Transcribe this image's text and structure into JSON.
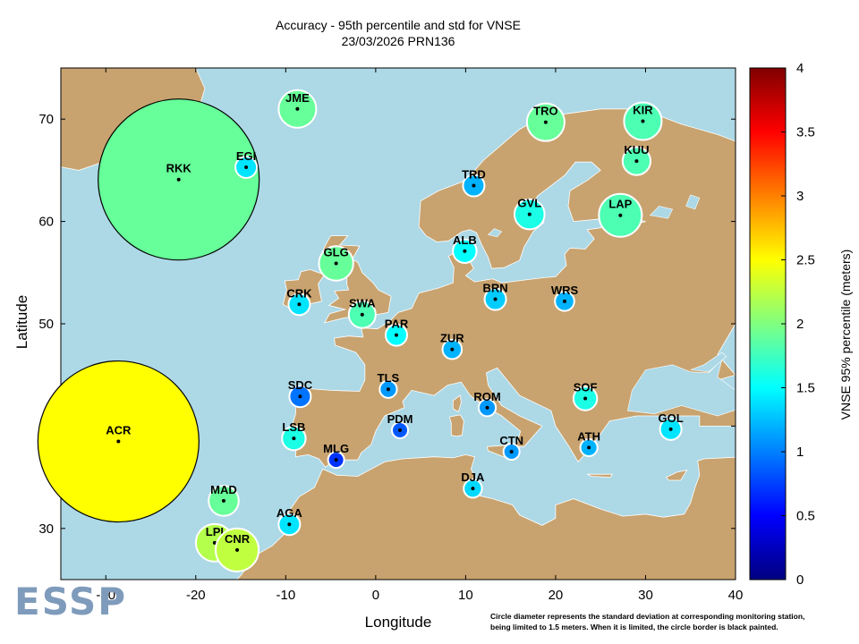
{
  "chart_data": {
    "type": "scatter",
    "title": "Accuracy - 95th percentile and std for VNSE",
    "subtitle": "23/03/2026 PRN136",
    "xlabel": "Longitude",
    "ylabel": "Latitude",
    "xlim": [
      -35,
      40
    ],
    "ylim": [
      25,
      75
    ],
    "xticks": [
      -30,
      -20,
      -10,
      0,
      10,
      20,
      30,
      40
    ],
    "yticks": [
      30,
      40,
      50,
      60,
      70
    ],
    "colorbar": {
      "label": "VNSE 95% percentile (meters)",
      "range": [
        0,
        4
      ],
      "ticks": [
        "0",
        "0.5",
        "1",
        "1.5",
        "2",
        "2.5",
        "3",
        "3.5",
        "4"
      ]
    },
    "stations": [
      {
        "name": "JME",
        "lon": -8.7,
        "lat": 71.0,
        "p95": 1.9,
        "std": 0.35,
        "limited": false
      },
      {
        "name": "RKK",
        "lon": -21.9,
        "lat": 64.1,
        "p95": 1.9,
        "std": 1.5,
        "limited": true
      },
      {
        "name": "EGI",
        "lon": -14.4,
        "lat": 65.3,
        "p95": 1.4,
        "std": 0.2,
        "limited": false
      },
      {
        "name": "TRO",
        "lon": 18.9,
        "lat": 69.7,
        "p95": 1.9,
        "std": 0.35,
        "limited": false
      },
      {
        "name": "KIR",
        "lon": 29.7,
        "lat": 69.8,
        "p95": 1.8,
        "std": 0.35,
        "limited": false
      },
      {
        "name": "KUU",
        "lon": 29.0,
        "lat": 65.9,
        "p95": 1.8,
        "std": 0.26,
        "limited": false
      },
      {
        "name": "TRD",
        "lon": 10.9,
        "lat": 63.5,
        "p95": 1.2,
        "std": 0.2,
        "limited": false
      },
      {
        "name": "GVL",
        "lon": 17.1,
        "lat": 60.7,
        "p95": 1.6,
        "std": 0.28,
        "limited": false
      },
      {
        "name": "LAP",
        "lon": 27.2,
        "lat": 60.6,
        "p95": 1.8,
        "std": 0.4,
        "limited": false
      },
      {
        "name": "ALB",
        "lon": 9.9,
        "lat": 57.1,
        "p95": 1.5,
        "std": 0.22,
        "limited": false
      },
      {
        "name": "GLG",
        "lon": -4.4,
        "lat": 55.9,
        "p95": 1.9,
        "std": 0.32,
        "limited": false
      },
      {
        "name": "BRN",
        "lon": 13.3,
        "lat": 52.4,
        "p95": 1.3,
        "std": 0.2,
        "limited": false
      },
      {
        "name": "WRS",
        "lon": 21.0,
        "lat": 52.2,
        "p95": 1.2,
        "std": 0.18,
        "limited": false
      },
      {
        "name": "CRK",
        "lon": -8.5,
        "lat": 51.9,
        "p95": 1.4,
        "std": 0.2,
        "limited": false
      },
      {
        "name": "SWA",
        "lon": -1.5,
        "lat": 50.9,
        "p95": 1.8,
        "std": 0.25,
        "limited": false
      },
      {
        "name": "PAR",
        "lon": 2.3,
        "lat": 48.9,
        "p95": 1.5,
        "std": 0.2,
        "limited": false
      },
      {
        "name": "ZUR",
        "lon": 8.5,
        "lat": 47.5,
        "p95": 1.2,
        "std": 0.18,
        "limited": false
      },
      {
        "name": "TLS",
        "lon": 1.4,
        "lat": 43.6,
        "p95": 1.1,
        "std": 0.16,
        "limited": false
      },
      {
        "name": "SDC",
        "lon": -8.4,
        "lat": 42.9,
        "p95": 0.95,
        "std": 0.2,
        "limited": false
      },
      {
        "name": "ROM",
        "lon": 12.4,
        "lat": 41.8,
        "p95": 1.1,
        "std": 0.16,
        "limited": false
      },
      {
        "name": "SOF",
        "lon": 23.3,
        "lat": 42.7,
        "p95": 1.6,
        "std": 0.22,
        "limited": false
      },
      {
        "name": "GOL",
        "lon": 32.8,
        "lat": 39.7,
        "p95": 1.4,
        "std": 0.2,
        "limited": false
      },
      {
        "name": "ACR",
        "lon": -28.6,
        "lat": 38.5,
        "p95": 2.5,
        "std": 1.5,
        "limited": true
      },
      {
        "name": "PDM",
        "lon": 2.7,
        "lat": 39.6,
        "p95": 0.85,
        "std": 0.14,
        "limited": false
      },
      {
        "name": "LSB",
        "lon": -9.1,
        "lat": 38.8,
        "p95": 1.6,
        "std": 0.22,
        "limited": false
      },
      {
        "name": "ATH",
        "lon": 23.7,
        "lat": 37.9,
        "p95": 1.2,
        "std": 0.16,
        "limited": false
      },
      {
        "name": "MLG",
        "lon": -4.4,
        "lat": 36.7,
        "p95": 0.7,
        "std": 0.1,
        "limited": false
      },
      {
        "name": "CTN",
        "lon": 15.1,
        "lat": 37.5,
        "p95": 1.1,
        "std": 0.13,
        "limited": false
      },
      {
        "name": "DJA",
        "lon": 10.8,
        "lat": 33.9,
        "p95": 1.35,
        "std": 0.17,
        "limited": false
      },
      {
        "name": "MAD",
        "lon": -16.9,
        "lat": 32.7,
        "p95": 1.9,
        "std": 0.28,
        "limited": false
      },
      {
        "name": "AGA",
        "lon": -9.6,
        "lat": 30.4,
        "p95": 1.4,
        "std": 0.2,
        "limited": false
      },
      {
        "name": "LPI",
        "lon": -17.9,
        "lat": 28.6,
        "p95": 2.2,
        "std": 0.35,
        "limited": false
      },
      {
        "name": "CNR",
        "lon": -15.4,
        "lat": 27.9,
        "p95": 2.25,
        "std": 0.4,
        "limited": false
      }
    ]
  },
  "footnote": {
    "line1": "Circle diameter represents the standard deviation at corresponding monitoring station,",
    "line2": "being limited to 1.5 meters. When it is limited, the circle border is black painted."
  },
  "logo_text": "ESSP",
  "colors": {
    "sea": "#add8e6",
    "land": "#c8a36f",
    "land_border": "#ffffff"
  }
}
